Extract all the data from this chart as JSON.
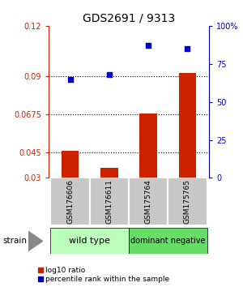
{
  "title": "GDS2691 / 9313",
  "samples": [
    "GSM176606",
    "GSM176611",
    "GSM175764",
    "GSM175765"
  ],
  "bar_values": [
    0.046,
    0.036,
    0.068,
    0.092
  ],
  "scatter_pct": [
    65,
    68,
    87,
    85
  ],
  "bar_color": "#cc2200",
  "scatter_color": "#0000cc",
  "ylim_left": [
    0.03,
    0.12
  ],
  "ylim_right": [
    0,
    100
  ],
  "yticks_left": [
    0.03,
    0.045,
    0.0675,
    0.09,
    0.12
  ],
  "ytick_labels_left": [
    "0.03",
    "0.045",
    "0.0675",
    "0.09",
    "0.12"
  ],
  "yticks_right": [
    0,
    25,
    50,
    75,
    100
  ],
  "ytick_labels_right": [
    "0",
    "25",
    "50",
    "75",
    "100%"
  ],
  "hlines": [
    0.045,
    0.0675,
    0.09
  ],
  "bar_bottom": 0.03,
  "group_label": "strain",
  "legend_bar": "log10 ratio",
  "legend_scatter": "percentile rank within the sample",
  "wild_type_label": "wild type",
  "dominant_negative_label": "dominant negative",
  "wt_color": "#bbffbb",
  "dn_color": "#66dd66",
  "names_bg": "#c8c8c8"
}
